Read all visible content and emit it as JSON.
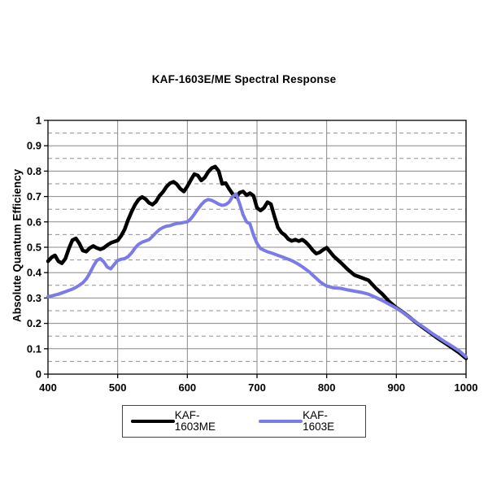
{
  "page": {
    "background": "#ffffff"
  },
  "header": {
    "title": "KAF-1603E/ME Spectral Response"
  },
  "axes": {
    "y_label": "Absolute Quantum Efficiency",
    "x_tick_labels": [
      "400",
      "500",
      "600",
      "700",
      "800",
      "900",
      "1000"
    ],
    "y_tick_labels": [
      "0",
      "0.1",
      "0.2",
      "0.3",
      "0.4",
      "0.5",
      "0.6",
      "0.7",
      "0.8",
      "0.9",
      "1"
    ]
  },
  "legend": {
    "items": [
      {
        "label": "KAF-1603ME",
        "color": "#000000"
      },
      {
        "label": "KAF-1603E",
        "color": "#7b7be8"
      }
    ]
  },
  "colors": {
    "major_grid": "#888888",
    "minor_grid": "#909090",
    "plot_border": "#000000",
    "series_me": "#000000",
    "series_e": "#7b7be8"
  },
  "chart_data": {
    "type": "line",
    "title": "KAF-1603E/ME Spectral Response",
    "xlabel": "",
    "ylabel": "Absolute Quantum Efficiency",
    "xlim": [
      400,
      1000
    ],
    "ylim": [
      0,
      1
    ],
    "x_tick_step": 100,
    "y_major_step": 0.1,
    "y_minor_step": 0.05,
    "grid": {
      "horizontal_major": "solid",
      "horizontal_minor": "dashed",
      "vertical": "solid"
    },
    "legend_position": "bottom-center",
    "x": [
      400,
      405,
      410,
      415,
      420,
      425,
      430,
      435,
      440,
      445,
      450,
      455,
      460,
      465,
      470,
      475,
      480,
      485,
      490,
      495,
      500,
      505,
      510,
      515,
      520,
      525,
      530,
      535,
      540,
      545,
      550,
      555,
      560,
      565,
      570,
      575,
      580,
      585,
      590,
      595,
      600,
      605,
      610,
      615,
      620,
      625,
      630,
      635,
      640,
      645,
      650,
      655,
      660,
      665,
      670,
      675,
      680,
      685,
      690,
      695,
      700,
      705,
      710,
      715,
      720,
      725,
      730,
      735,
      740,
      745,
      750,
      755,
      760,
      765,
      770,
      775,
      780,
      785,
      790,
      795,
      800,
      810,
      820,
      830,
      840,
      850,
      860,
      870,
      880,
      890,
      900,
      910,
      920,
      930,
      940,
      950,
      960,
      970,
      980,
      990,
      1000
    ],
    "series": [
      {
        "name": "KAF-1603ME",
        "color": "#000000",
        "stroke_width": 4.5,
        "values": [
          0.445,
          0.46,
          0.468,
          0.445,
          0.437,
          0.455,
          0.495,
          0.528,
          0.535,
          0.515,
          0.487,
          0.483,
          0.497,
          0.505,
          0.497,
          0.492,
          0.497,
          0.508,
          0.517,
          0.522,
          0.527,
          0.545,
          0.57,
          0.608,
          0.64,
          0.668,
          0.688,
          0.698,
          0.69,
          0.675,
          0.668,
          0.68,
          0.703,
          0.718,
          0.738,
          0.752,
          0.758,
          0.748,
          0.73,
          0.72,
          0.74,
          0.765,
          0.788,
          0.783,
          0.763,
          0.775,
          0.797,
          0.812,
          0.818,
          0.8,
          0.75,
          0.753,
          0.73,
          0.71,
          0.698,
          0.715,
          0.72,
          0.705,
          0.713,
          0.703,
          0.655,
          0.645,
          0.655,
          0.678,
          0.67,
          0.622,
          0.578,
          0.558,
          0.548,
          0.532,
          0.525,
          0.53,
          0.524,
          0.53,
          0.52,
          0.505,
          0.488,
          0.475,
          0.48,
          0.49,
          0.498,
          0.465,
          0.44,
          0.413,
          0.39,
          0.38,
          0.37,
          0.34,
          0.315,
          0.285,
          0.262,
          0.243,
          0.222,
          0.2,
          0.18,
          0.16,
          0.14,
          0.122,
          0.104,
          0.085,
          0.062
        ]
      },
      {
        "name": "KAF-1603E",
        "color": "#7b7be8",
        "stroke_width": 4,
        "values": [
          0.305,
          0.308,
          0.312,
          0.315,
          0.32,
          0.325,
          0.33,
          0.335,
          0.342,
          0.35,
          0.36,
          0.375,
          0.398,
          0.425,
          0.448,
          0.455,
          0.443,
          0.422,
          0.415,
          0.432,
          0.448,
          0.453,
          0.455,
          0.463,
          0.478,
          0.497,
          0.512,
          0.52,
          0.525,
          0.53,
          0.543,
          0.557,
          0.57,
          0.578,
          0.583,
          0.585,
          0.59,
          0.594,
          0.595,
          0.598,
          0.6,
          0.612,
          0.63,
          0.65,
          0.668,
          0.682,
          0.688,
          0.685,
          0.678,
          0.67,
          0.665,
          0.668,
          0.678,
          0.7,
          0.71,
          0.672,
          0.628,
          0.6,
          0.592,
          0.548,
          0.515,
          0.495,
          0.488,
          0.482,
          0.478,
          0.473,
          0.468,
          0.463,
          0.458,
          0.453,
          0.447,
          0.44,
          0.432,
          0.423,
          0.413,
          0.403,
          0.39,
          0.378,
          0.365,
          0.355,
          0.347,
          0.34,
          0.338,
          0.332,
          0.327,
          0.322,
          0.315,
          0.303,
          0.29,
          0.275,
          0.26,
          0.242,
          0.222,
          0.202,
          0.183,
          0.163,
          0.145,
          0.127,
          0.11,
          0.092,
          0.068
        ]
      }
    ]
  }
}
